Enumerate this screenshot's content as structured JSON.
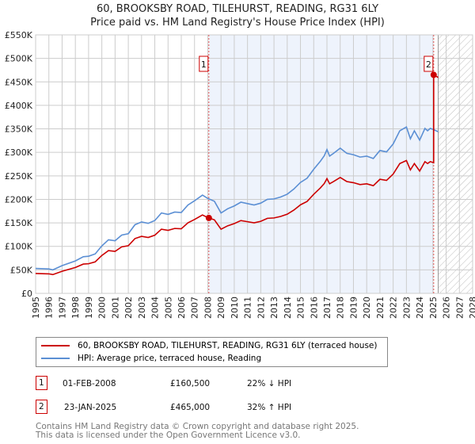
{
  "chart_data": {
    "type": "line",
    "title": "60, BROOKSBY ROAD, TILEHURST, READING, RG31 6LY",
    "subtitle": "Price paid vs. HM Land Registry's House Price Index (HPI)",
    "ylim": [
      0,
      550000
    ],
    "xlim": [
      1995,
      2028
    ],
    "y_ticks": [
      "£0",
      "£50K",
      "£100K",
      "£150K",
      "£200K",
      "£250K",
      "£300K",
      "£350K",
      "£400K",
      "£450K",
      "£500K",
      "£550K"
    ],
    "x_ticks": [
      "1995",
      "1996",
      "1997",
      "1998",
      "1999",
      "2000",
      "2001",
      "2002",
      "2003",
      "2004",
      "2005",
      "2006",
      "2007",
      "2008",
      "2009",
      "2010",
      "2011",
      "2012",
      "2013",
      "2014",
      "2015",
      "2016",
      "2017",
      "2018",
      "2019",
      "2020",
      "2021",
      "2022",
      "2023",
      "2024",
      "2025",
      "2026",
      "2027",
      "2028"
    ],
    "grid": true,
    "hpi": {
      "name": "HPI: Average price, terraced house, Reading",
      "color": "#5b8fd4",
      "x": [
        1995,
        1996,
        1996.3,
        1997,
        1998,
        1998.6,
        1999,
        1999.5,
        2000,
        2000.5,
        2001,
        2001.5,
        2002,
        2002.5,
        2003,
        2003.5,
        2004,
        2004.5,
        2005,
        2005.5,
        2006,
        2006.5,
        2007,
        2007.6,
        2008,
        2008.5,
        2009,
        2009.5,
        2010,
        2010.5,
        2011,
        2011.5,
        2012,
        2012.5,
        2013,
        2013.5,
        2014,
        2014.5,
        2015,
        2015.5,
        2016,
        2016.5,
        2016.8,
        2017,
        2017.2,
        2017.5,
        2018,
        2018.5,
        2019,
        2019.5,
        2020,
        2020.5,
        2021,
        2021.5,
        2022,
        2022.5,
        2023,
        2023.3,
        2023.6,
        2024,
        2024.4,
        2024.6,
        2024.8,
        2025,
        2025.4
      ],
      "y": [
        53000,
        52000,
        50000,
        59000,
        69000,
        78000,
        79000,
        84000,
        101000,
        114000,
        112000,
        124000,
        127000,
        146000,
        152000,
        149000,
        155000,
        171000,
        168000,
        173000,
        172000,
        188000,
        197000,
        209000,
        202000,
        196000,
        171000,
        180000,
        186000,
        194000,
        191000,
        188000,
        192000,
        200000,
        201000,
        205000,
        211000,
        222000,
        236000,
        245000,
        264000,
        281000,
        293000,
        306000,
        292000,
        298000,
        309000,
        298000,
        295000,
        290000,
        292000,
        287000,
        304000,
        301000,
        318000,
        346000,
        354000,
        329000,
        346000,
        326000,
        351000,
        346000,
        351000,
        349000,
        344000
      ]
    },
    "property": {
      "name": "60, BROOKSBY ROAD, TILEHURST, READING, RG31 6LY (terraced house)",
      "color": "#cc0000"
    },
    "sales": [
      {
        "id": "1",
        "x": 2008.08,
        "date": "01-FEB-2008",
        "price": 160500,
        "price_label": "£160,500",
        "hpi_label": "22% ↓ HPI"
      },
      {
        "id": "2",
        "x": 2025.06,
        "date": "23-JAN-2025",
        "price": 465000,
        "price_label": "£465,000",
        "hpi_label": "32% ↑ HPI"
      }
    ],
    "forecast_start": 2025.4
  },
  "footer": {
    "line1": "Contains HM Land Registry data © Crown copyright and database right 2025.",
    "line2": "This data is licensed under the Open Government Licence v3.0."
  }
}
